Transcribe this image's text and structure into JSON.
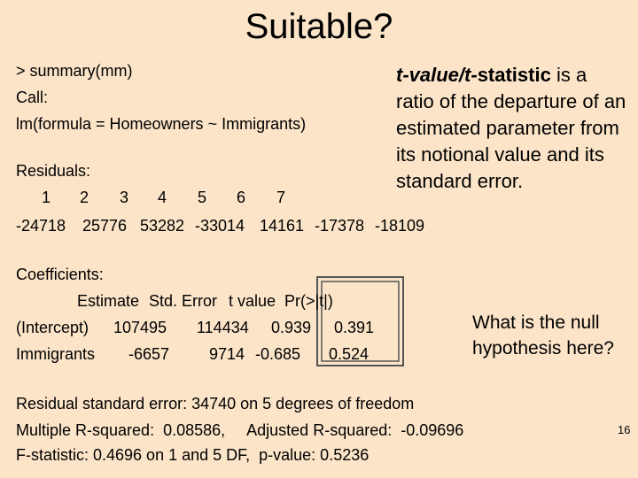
{
  "title": "Suitable?",
  "call": {
    "lines": [
      "> summary(mm)",
      "Call:",
      "lm(formula = Homeowners ~ Immigrants)"
    ]
  },
  "residuals": {
    "heading": "Residuals:",
    "indices": [
      "1",
      "2",
      "3",
      "4",
      "5",
      "6",
      "7"
    ],
    "values": [
      "-24718",
      "25776",
      "53282",
      "-33014",
      "14161",
      "-17378",
      "-18109"
    ]
  },
  "coefficients": {
    "heading": "Coefficients:",
    "columns": [
      "Estimate",
      "Std. Error",
      "t value",
      "Pr(>|t|)"
    ],
    "rows": [
      [
        "(Intercept)",
        "107495",
        "114434",
        "0.939",
        "0.391"
      ],
      [
        "Immigrants",
        "-6657",
        "9714",
        "-0.685",
        "0.524"
      ]
    ]
  },
  "summary": {
    "lines": [
      "Residual standard error: 34740 on 5 degrees of freedom",
      "Multiple R-squared:  0.08586,     Adjusted R-squared:  -0.09696",
      "F-statistic: 0.4696 on 1 and 5 DF,  p-value: 0.5236"
    ]
  },
  "callout": {
    "italic_part": "t-value/t-",
    "bold_part": "statistic",
    "rest": " is a ratio of the departure of an estimated parameter from its notional value and its standard error."
  },
  "question": "What is the null hypothesis here?",
  "page_number": "16"
}
